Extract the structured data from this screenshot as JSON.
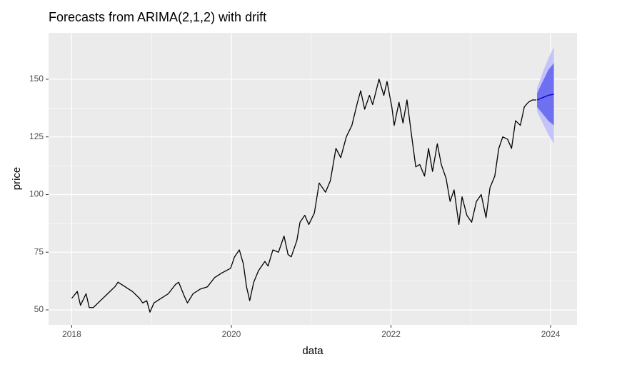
{
  "chart_data": {
    "type": "forecast",
    "title": "Forecasts from ARIMA(2,1,2) with drift",
    "xlabel": "data",
    "ylabel": "price",
    "xlim": [
      2017.71,
      2024.33
    ],
    "ylim": [
      43.5,
      170.1
    ],
    "xticks": [
      2018,
      2020,
      2022,
      2024
    ],
    "yticks": [
      50,
      75,
      100,
      125,
      150
    ],
    "x_minor_ticks": [
      2019,
      2021,
      2023
    ],
    "y_minor_ticks": [
      62.5,
      87.5,
      112.5,
      137.5
    ],
    "grid": true,
    "color": "#000000",
    "x": [
      2018.0,
      2018.07,
      2018.11,
      2018.18,
      2018.22,
      2018.27,
      2018.36,
      2018.45,
      2018.54,
      2018.58,
      2018.67,
      2018.76,
      2018.85,
      2018.89,
      2018.94,
      2018.98,
      2019.03,
      2019.12,
      2019.21,
      2019.3,
      2019.34,
      2019.41,
      2019.45,
      2019.52,
      2019.61,
      2019.7,
      2019.79,
      2019.88,
      2019.99,
      2020.04,
      2020.1,
      2020.15,
      2020.19,
      2020.23,
      2020.28,
      2020.34,
      2020.42,
      2020.46,
      2020.52,
      2020.59,
      2020.66,
      2020.71,
      2020.75,
      2020.82,
      2020.86,
      2020.92,
      2020.97,
      2021.04,
      2021.1,
      2021.18,
      2021.24,
      2021.31,
      2021.37,
      2021.44,
      2021.51,
      2021.58,
      2021.62,
      2021.67,
      2021.73,
      2021.77,
      2021.85,
      2021.91,
      2021.95,
      2022.01,
      2022.04,
      2022.1,
      2022.15,
      2022.2,
      2022.26,
      2022.31,
      2022.36,
      2022.42,
      2022.47,
      2022.52,
      2022.58,
      2022.63,
      2022.69,
      2022.74,
      2022.79,
      2022.85,
      2022.89,
      2022.95,
      2023.01,
      2023.07,
      2023.13,
      2023.19,
      2023.24,
      2023.3,
      2023.35,
      2023.4,
      2023.46,
      2023.51,
      2023.56,
      2023.62,
      2023.67,
      2023.72,
      2023.77,
      2023.82
    ],
    "values": [
      55,
      58,
      52,
      57,
      51,
      51,
      54,
      57,
      60,
      62,
      60,
      58,
      55,
      53,
      54,
      49,
      53,
      55,
      57,
      61,
      62,
      56,
      53,
      57,
      59,
      60,
      64,
      66,
      68,
      73,
      76,
      70,
      60,
      54,
      62,
      67,
      71,
      69,
      76,
      75,
      82,
      74,
      73,
      80,
      88,
      91,
      87,
      92,
      105,
      101,
      106,
      120,
      116,
      125,
      130,
      140,
      145,
      137,
      143,
      139,
      150,
      143,
      149,
      138,
      130,
      140,
      131,
      141,
      125,
      112,
      113,
      108,
      120,
      110,
      122,
      113,
      107,
      97,
      102,
      87,
      99,
      91,
      88,
      97,
      100,
      90,
      103,
      108,
      120,
      125,
      124,
      120,
      132,
      130,
      138,
      140,
      141,
      141
    ],
    "forecast": {
      "x": [
        2023.83,
        2023.9,
        2023.97,
        2024.04
      ],
      "mean": [
        141,
        142,
        143,
        143.5
      ],
      "lo80": [
        138,
        135,
        132,
        130
      ],
      "hi80": [
        144,
        149,
        154,
        157
      ],
      "lo95": [
        136,
        131,
        126,
        122
      ],
      "hi95": [
        146,
        153,
        159,
        164
      ],
      "mean_color": "#0000cc",
      "color80": "#6f6ff2",
      "color95": "#c4c4fa"
    }
  }
}
